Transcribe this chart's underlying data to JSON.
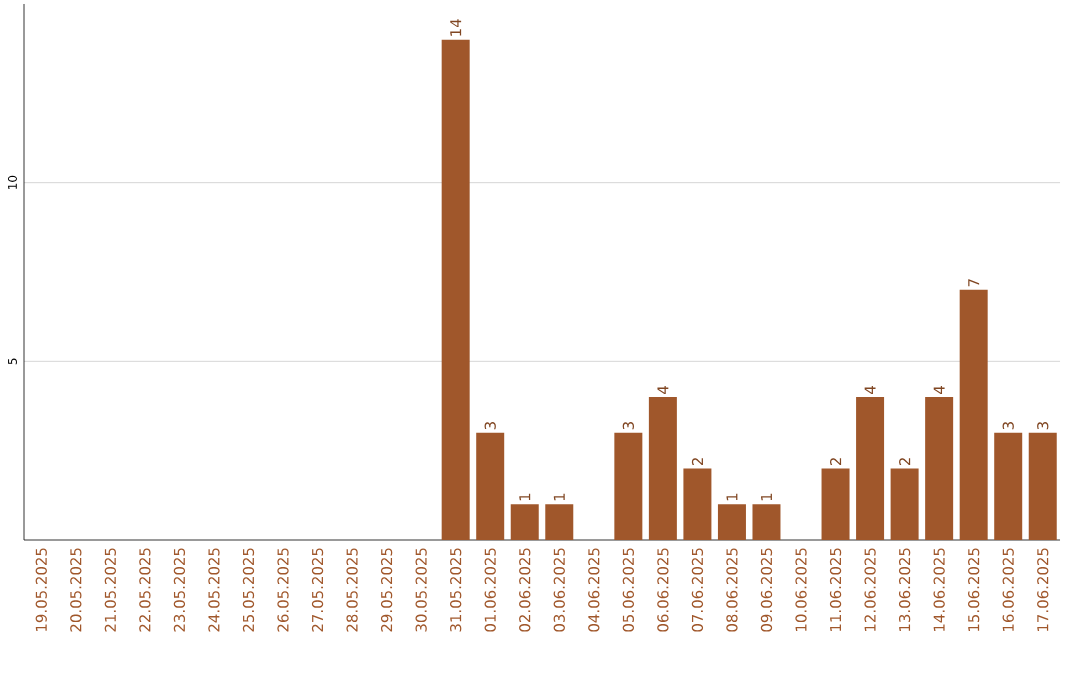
{
  "chart_data": {
    "type": "bar",
    "categories": [
      "19.05.2025",
      "20.05.2025",
      "21.05.2025",
      "22.05.2025",
      "23.05.2025",
      "24.05.2025",
      "25.05.2025",
      "26.05.2025",
      "27.05.2025",
      "28.05.2025",
      "29.05.2025",
      "30.05.2025",
      "31.05.2025",
      "01.06.2025",
      "02.06.2025",
      "03.06.2025",
      "04.06.2025",
      "05.06.2025",
      "06.06.2025",
      "07.06.2025",
      "08.06.2025",
      "09.06.2025",
      "10.06.2025",
      "11.06.2025",
      "12.06.2025",
      "13.06.2025",
      "14.06.2025",
      "15.06.2025",
      "16.06.2025",
      "17.06.2025"
    ],
    "values": [
      0,
      0,
      0,
      0,
      0,
      0,
      0,
      0,
      0,
      0,
      0,
      0,
      14,
      3,
      1,
      1,
      0,
      3,
      4,
      2,
      1,
      1,
      0,
      2,
      4,
      2,
      4,
      7,
      3,
      3
    ],
    "value_labels": [
      null,
      null,
      null,
      null,
      null,
      null,
      null,
      null,
      null,
      null,
      null,
      null,
      "14",
      "3",
      "1",
      "1",
      null,
      "3",
      "4",
      "2",
      "1",
      "1",
      null,
      "2",
      "4",
      "2",
      "4",
      "7",
      "3",
      "3"
    ],
    "color": "#a0572b",
    "ylim": [
      0,
      15
    ],
    "yticks": [
      5,
      10
    ],
    "grid": "y"
  }
}
